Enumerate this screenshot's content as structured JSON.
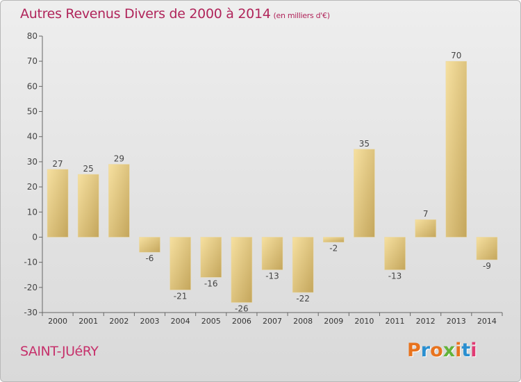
{
  "header": {
    "title": "Autres Revenus Divers de 2000 à 2014",
    "subtitle": "(en milliers d'€)"
  },
  "footer": {
    "city": "SAINT-JUéRY",
    "logo_text": "Proxiti"
  },
  "colors": {
    "title": "#b0245a",
    "bar_light": "#f4dc98",
    "bar_dark": "#c7ab62",
    "logo": [
      "#e8731e",
      "#2a8fd0",
      "#e8731e",
      "#63b33a",
      "#e8731e",
      "#2a8fd0",
      "#e03b73"
    ]
  },
  "chart_data": {
    "type": "bar",
    "categories": [
      "2000",
      "2001",
      "2002",
      "2003",
      "2004",
      "2005",
      "2006",
      "2007",
      "2008",
      "2009",
      "2010",
      "2011",
      "2012",
      "2013",
      "2014"
    ],
    "values": [
      27,
      25,
      29,
      -6,
      -21,
      -16,
      -26,
      -13,
      -22,
      -2,
      35,
      -13,
      7,
      70,
      -9
    ],
    "title": "Autres Revenus Divers de 2000 à 2014",
    "subtitle": "(en milliers d'€)",
    "xlabel": "",
    "ylabel": "",
    "ylim": [
      -30,
      80
    ],
    "yticks": [
      -30,
      -20,
      -10,
      0,
      10,
      20,
      30,
      40,
      50,
      60,
      70,
      80
    ],
    "grid": false,
    "legend": "none"
  }
}
